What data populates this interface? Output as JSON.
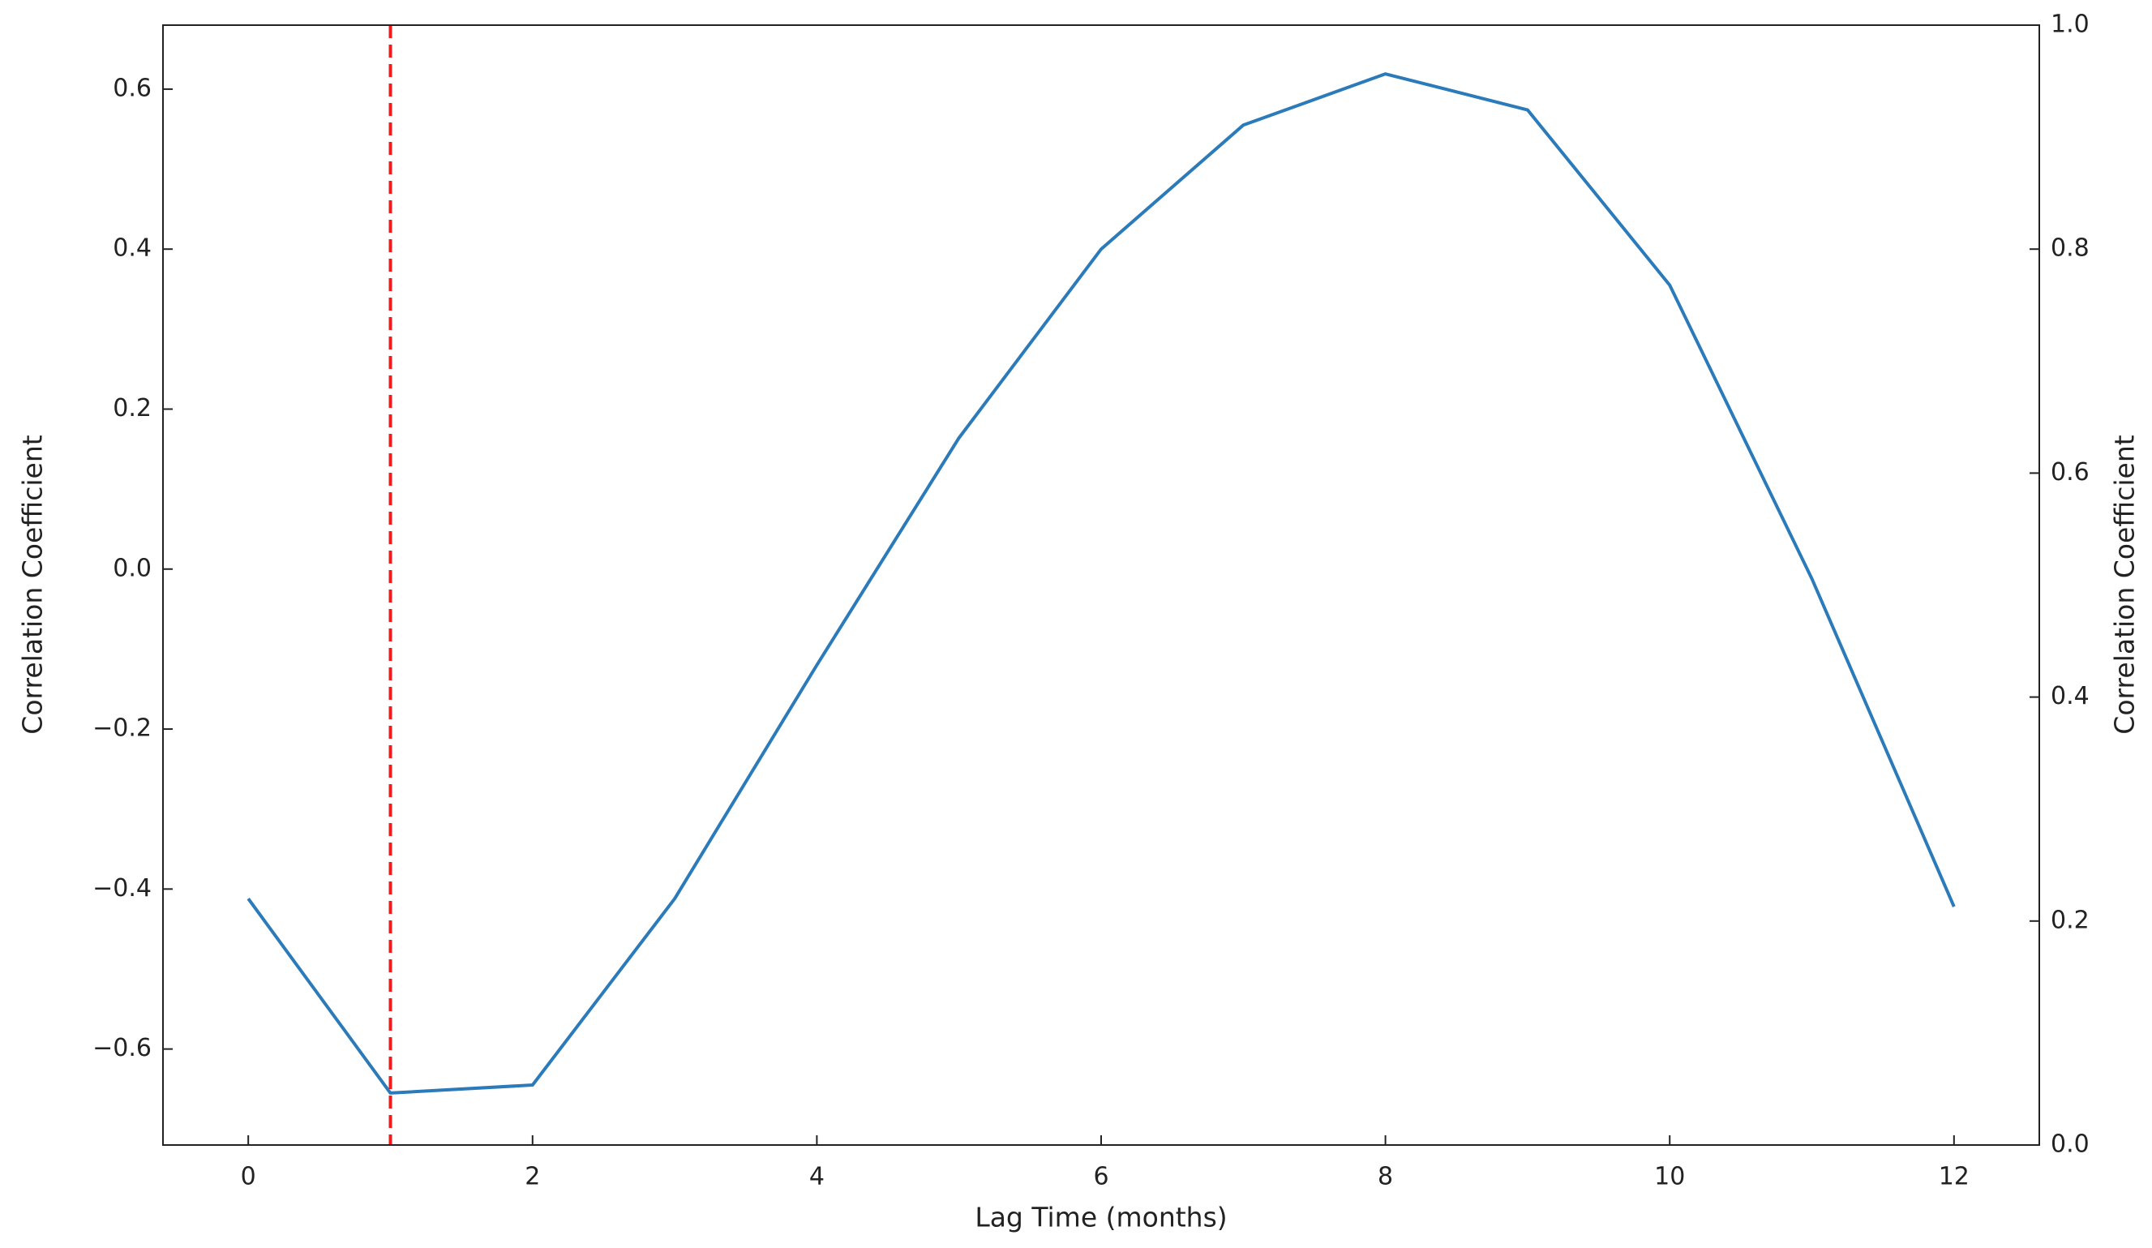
{
  "chart_data": {
    "type": "line",
    "xlabel": "Lag Time (months)",
    "ylabel": "Correlation Coefficient",
    "y2label": "Correlation Coefficient",
    "x": [
      0,
      1,
      2,
      3,
      4,
      5,
      6,
      7,
      8,
      9,
      10,
      11,
      12
    ],
    "values": [
      -0.412,
      -0.655,
      -0.645,
      -0.412,
      -0.12,
      0.164,
      0.4,
      0.555,
      0.619,
      0.574,
      0.355,
      -0.012,
      -0.422
    ],
    "color": "#2b7bba",
    "xlim": [
      -0.6,
      12.6
    ],
    "xticks": [
      0,
      2,
      4,
      6,
      8,
      10,
      12
    ],
    "ylim": [
      -0.72,
      0.68
    ],
    "yticks": [
      {
        "value": -0.6,
        "label": "−0.6"
      },
      {
        "value": -0.4,
        "label": "−0.4"
      },
      {
        "value": -0.2,
        "label": "−0.2"
      },
      {
        "value": 0,
        "label": "0.0"
      },
      0.2,
      0.4,
      0.6
    ],
    "y2lim": [
      0,
      1
    ],
    "y2ticks": [
      {
        "value": 0,
        "label": "0.0"
      },
      0.2,
      0.4,
      0.6,
      0.8,
      {
        "value": 1,
        "label": "1.0"
      }
    ],
    "vline": {
      "x": 1,
      "color": "#ee1c1c",
      "style": "dashed"
    },
    "grid": false
  }
}
